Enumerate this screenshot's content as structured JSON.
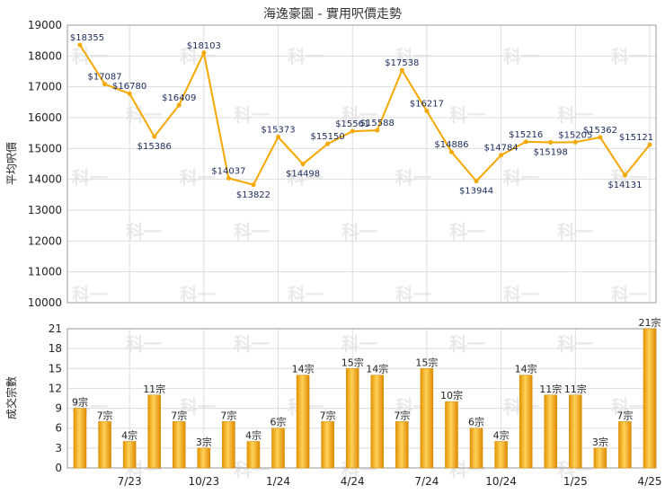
{
  "chart_data": [
    {
      "type": "line",
      "title": "海逸豪園 - 實用呎價走勢",
      "ylabel": "平均呎價",
      "ylim": [
        10000,
        19000
      ],
      "yticks": [
        "10000",
        "11000",
        "12000",
        "13000",
        "14000",
        "15000",
        "16000",
        "17000",
        "18000",
        "19000"
      ],
      "color": "#f5a800",
      "grid": true,
      "values": [
        18355,
        17087,
        16780,
        15386,
        16409,
        18103,
        14037,
        13822,
        15373,
        14498,
        15150,
        15561,
        15588,
        17538,
        16217,
        14886,
        13944,
        14784,
        15216,
        15198,
        15205,
        15362,
        14131,
        15121
      ],
      "labels": [
        "$18355",
        "$17087",
        "$16780",
        "$15386",
        "$16409",
        "$18103",
        "$14037",
        "$13822",
        "$15373",
        "$14498",
        "$15150",
        "$15561",
        "$15588",
        "$17538",
        "$16217",
        "$14886",
        "$13944",
        "$14784",
        "$15216",
        "$15198",
        "$15205",
        "$15362",
        "$14131",
        "$15121"
      ]
    },
    {
      "type": "bar",
      "ylabel": "成交宗數",
      "ylim": [
        0,
        21
      ],
      "yticks": [
        "0",
        "3",
        "6",
        "9",
        "12",
        "15",
        "18",
        "21"
      ],
      "x_tick_labels": [
        "7/23",
        "10/23",
        "1/24",
        "4/24",
        "7/24",
        "10/24",
        "1/25",
        "4/25"
      ],
      "color": "#f5a800",
      "grid": true,
      "values": [
        9,
        7,
        4,
        11,
        7,
        3,
        7,
        4,
        6,
        14,
        7,
        15,
        14,
        7,
        15,
        10,
        6,
        4,
        14,
        11,
        11,
        3,
        7,
        21
      ],
      "labels": [
        "9宗",
        "7宗",
        "4宗",
        "11宗",
        "7宗",
        "3宗",
        "7宗",
        "4宗",
        "6宗",
        "14宗",
        "7宗",
        "15宗",
        "14宗",
        "7宗",
        "15宗",
        "10宗",
        "6宗",
        "4宗",
        "14宗",
        "11宗",
        "11宗",
        "3宗",
        "7宗",
        "21宗"
      ]
    }
  ],
  "watermark": "科一"
}
